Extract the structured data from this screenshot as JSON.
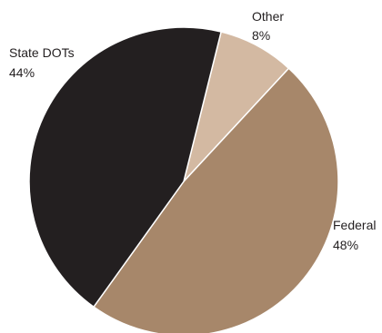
{
  "chart_data": {
    "type": "pie",
    "title": "",
    "slices": [
      {
        "label": "Other",
        "value": 8,
        "value_label": "8%",
        "color": "#d3b9a2"
      },
      {
        "label": "Federal",
        "value": 48,
        "value_label": "48%",
        "color": "#a7876a"
      },
      {
        "label": "State DOTs",
        "value": 44,
        "value_label": "44%",
        "color": "#231f20"
      }
    ],
    "start_angle_deg": 14,
    "direction": "clockwise",
    "slice_border_color": "#ffffff",
    "legend": "none"
  }
}
